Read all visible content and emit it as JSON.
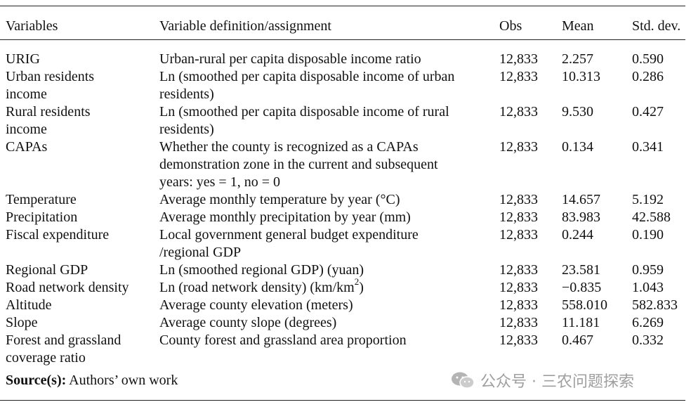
{
  "header": {
    "variables": "Variables",
    "definition": "Variable definition/assignment",
    "obs": "Obs",
    "mean": "Mean",
    "sd": "Std. dev."
  },
  "rows": [
    {
      "name": [
        "URIG"
      ],
      "def": [
        "Urban-rural per capita disposable income ratio"
      ],
      "obs": "12,833",
      "mean": "2.257",
      "sd": "0.590"
    },
    {
      "name": [
        "Urban residents",
        "income"
      ],
      "def": [
        "Ln (smoothed per capita disposable income of urban",
        "residents)"
      ],
      "obs": "12,833",
      "mean": "10.313",
      "sd": "0.286"
    },
    {
      "name": [
        "Rural residents",
        "income"
      ],
      "def": [
        "Ln (smoothed per capita disposable income of rural",
        "residents)"
      ],
      "obs": "12,833",
      "mean": "9.530",
      "sd": "0.427"
    },
    {
      "name": [
        "CAPAs"
      ],
      "def": [
        "Whether the county is recognized as a CAPAs",
        "demonstration zone in the current and subsequent",
        "years: yes = 1, no = 0"
      ],
      "obs": "12,833",
      "mean": "0.134",
      "sd": "0.341"
    },
    {
      "name": [
        "Temperature"
      ],
      "def": [
        "Average monthly temperature by year (°C)"
      ],
      "obs": "12,833",
      "mean": "14.657",
      "sd": "5.192"
    },
    {
      "name": [
        "Precipitation"
      ],
      "def": [
        "Average monthly precipitation by year (mm)"
      ],
      "obs": "12,833",
      "mean": "83.983",
      "sd": "42.588"
    },
    {
      "name": [
        "Fiscal expenditure"
      ],
      "def": [
        "Local government general budget expenditure",
        "/regional GDP"
      ],
      "obs": "12,833",
      "mean": "0.244",
      "sd": "0.190"
    },
    {
      "name": [
        "Regional GDP"
      ],
      "def": [
        "Ln (smoothed regional GDP) (yuan)"
      ],
      "obs": "12,833",
      "mean": "23.581",
      "sd": "0.959"
    },
    {
      "name": [
        "Road network density"
      ],
      "def": [
        "Ln (road network density) (km/km"
      ],
      "def_sup": "2",
      "def_tail": ")",
      "obs": "12,833",
      "mean": "−0.835",
      "sd": "1.043"
    },
    {
      "name": [
        "Altitude"
      ],
      "def": [
        "Average county elevation (meters)"
      ],
      "obs": "12,833",
      "mean": "558.010",
      "sd": "582.833"
    },
    {
      "name": [
        "Slope"
      ],
      "def": [
        "Average county slope (degrees)"
      ],
      "obs": "12,833",
      "mean": "11.181",
      "sd": "6.269"
    },
    {
      "name": [
        "Forest and grassland",
        "coverage ratio"
      ],
      "def": [
        "County forest and grassland area proportion"
      ],
      "obs": "12,833",
      "mean": "0.467",
      "sd": "0.332"
    }
  ],
  "source": {
    "label": "Source(s):",
    "text": " Authors’ own work"
  },
  "watermark": {
    "text": "公众号 · 三农问题探索"
  }
}
